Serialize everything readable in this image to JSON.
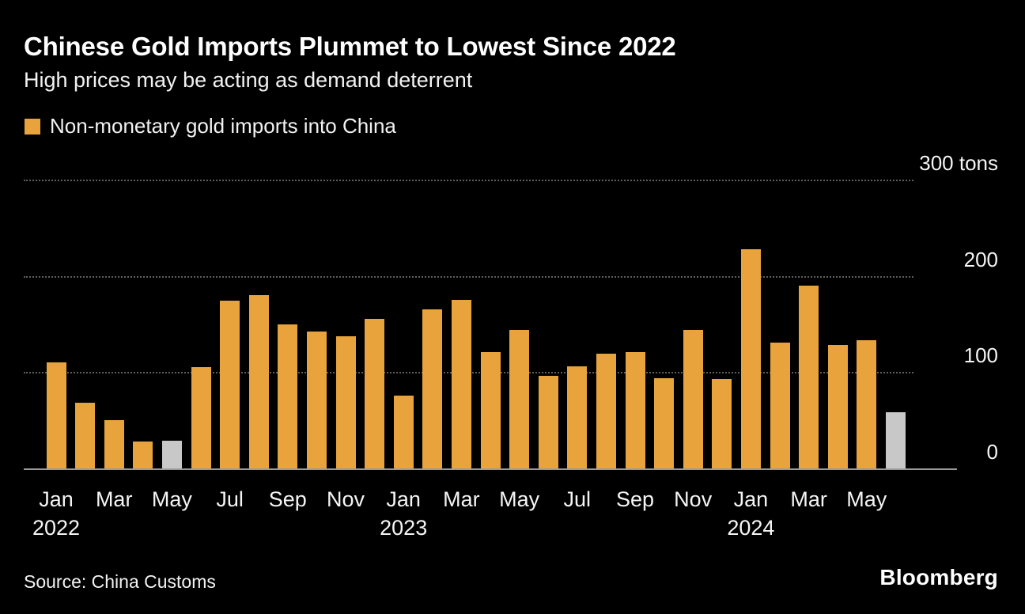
{
  "header": {
    "title": "Chinese Gold Imports Plummet to Lowest Since 2022",
    "subtitle": "High prices may be acting as demand deterrent"
  },
  "legend": {
    "label": "Non-monetary gold imports into China"
  },
  "footer": {
    "source": "Source: China Customs",
    "brand": "Bloomberg"
  },
  "colors": {
    "bar_orange": "#E8A33C",
    "bar_gray": "#C8C8C8",
    "background": "#000000",
    "gridline": "#5e5e5e",
    "baseline": "#9a9a9a"
  },
  "chart_data": {
    "type": "bar",
    "title": "Chinese Gold Imports Plummet to Lowest Since 2022",
    "subtitle": "High prices may be acting as demand deterrent",
    "series_name": "Non-monetary gold imports into China",
    "unit": "tons",
    "ylim": [
      0,
      300
    ],
    "grid": "dotted-horizontal",
    "legend_position": "top-left",
    "yticks": [
      {
        "value": 300,
        "label": "300 tons"
      },
      {
        "value": 200,
        "label": "200"
      },
      {
        "value": 100,
        "label": "100"
      },
      {
        "value": 0,
        "label": "0"
      }
    ],
    "points": [
      {
        "month": "Jan",
        "year": "2022",
        "value": 110
      },
      {
        "month": "Feb",
        "year": "2022",
        "value": 68
      },
      {
        "month": "Mar",
        "year": "2022",
        "value": 50
      },
      {
        "month": "Apr",
        "year": "2022",
        "value": 28
      },
      {
        "month": "May",
        "year": "2022",
        "value": 29,
        "highlight": true
      },
      {
        "month": "Jun",
        "year": "2022",
        "value": 105
      },
      {
        "month": "Jul",
        "year": "2022",
        "value": 174
      },
      {
        "month": "Aug",
        "year": "2022",
        "value": 180
      },
      {
        "month": "Sep",
        "year": "2022",
        "value": 150
      },
      {
        "month": "Oct",
        "year": "2022",
        "value": 142
      },
      {
        "month": "Nov",
        "year": "2022",
        "value": 137
      },
      {
        "month": "Dec",
        "year": "2022",
        "value": 155
      },
      {
        "month": "Jan",
        "year": "2023",
        "value": 76
      },
      {
        "month": "Feb",
        "year": "2023",
        "value": 165
      },
      {
        "month": "Mar",
        "year": "2023",
        "value": 175
      },
      {
        "month": "Apr",
        "year": "2023",
        "value": 121
      },
      {
        "month": "May",
        "year": "2023",
        "value": 144
      },
      {
        "month": "Jun",
        "year": "2023",
        "value": 96
      },
      {
        "month": "Jul",
        "year": "2023",
        "value": 106
      },
      {
        "month": "Aug",
        "year": "2023",
        "value": 119
      },
      {
        "month": "Sep",
        "year": "2023",
        "value": 121
      },
      {
        "month": "Oct",
        "year": "2023",
        "value": 94
      },
      {
        "month": "Nov",
        "year": "2023",
        "value": 144
      },
      {
        "month": "Dec",
        "year": "2023",
        "value": 93
      },
      {
        "month": "Jan",
        "year": "2024",
        "value": 228
      },
      {
        "month": "Feb",
        "year": "2024",
        "value": 131
      },
      {
        "month": "Mar",
        "year": "2024",
        "value": 190
      },
      {
        "month": "Apr",
        "year": "2024",
        "value": 128
      },
      {
        "month": "May",
        "year": "2024",
        "value": 133
      },
      {
        "month": "Jun",
        "year": "2024",
        "value": 58,
        "highlight": true
      }
    ],
    "xtick_every": 2,
    "year_labels_under": "Jan"
  }
}
